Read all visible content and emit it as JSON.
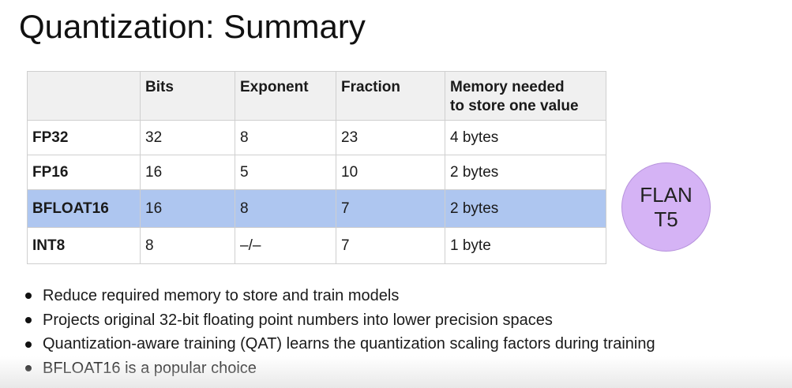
{
  "title": "Quantization: Summary",
  "table": {
    "headers": [
      "",
      "Bits",
      "Exponent",
      "Fraction",
      "Memory needed\nto store one value"
    ],
    "header_lines": {
      "memory_line1": "Memory needed",
      "memory_line2": "to store one value"
    },
    "rows": [
      {
        "type": "FP32",
        "bits": "32",
        "exponent": "8",
        "fraction": "23",
        "memory": "4 bytes",
        "highlighted": false
      },
      {
        "type": "FP16",
        "bits": "16",
        "exponent": "5",
        "fraction": "10",
        "memory": "2 bytes",
        "highlighted": false
      },
      {
        "type": "BFLOAT16",
        "bits": "16",
        "exponent": "8",
        "fraction": "7",
        "memory": "2 bytes",
        "highlighted": true
      },
      {
        "type": "INT8",
        "bits": "8",
        "exponent": "–/–",
        "fraction": "7",
        "memory": "1 byte",
        "highlighted": false
      }
    ],
    "highlight_color": "#aec6f0",
    "header_bg": "#f0f0f0"
  },
  "model_badge": {
    "line1": "FLAN",
    "line2": "T5",
    "color": "#d5b3f5"
  },
  "bullets": [
    "Reduce required memory to store and train models",
    "Projects original 32-bit floating point numbers into lower precision spaces",
    "Quantization-aware training (QAT) learns the quantization scaling factors during training",
    "BFLOAT16 is a popular choice"
  ]
}
